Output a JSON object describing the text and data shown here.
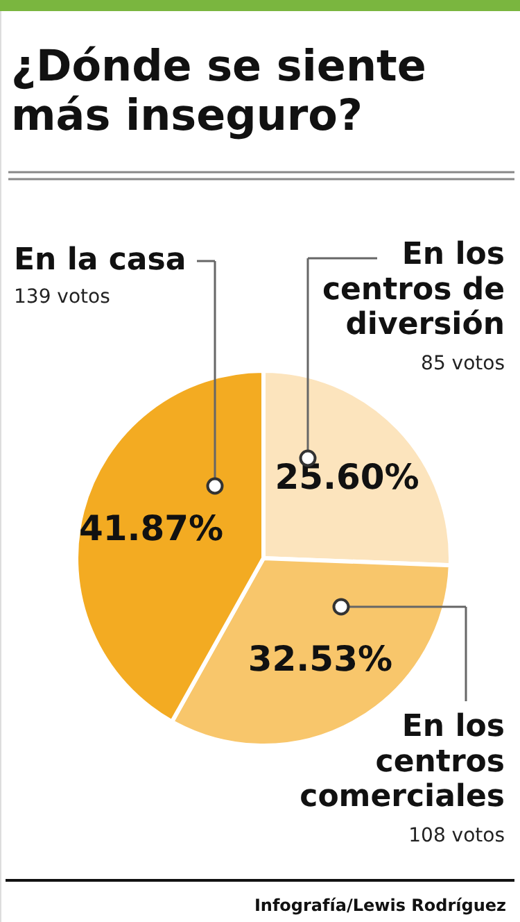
{
  "chart_data": {
    "type": "pie",
    "title": "¿Dónde se siente más inseguro?",
    "categories": [
      "En los centros de diversión",
      "En los centros comerciales",
      "En la casa"
    ],
    "values": [
      25.6,
      32.53,
      41.87
    ],
    "colors": [
      "#fce4bd",
      "#f8c66b",
      "#f3ab22"
    ],
    "value_labels": [
      "25.60%",
      "32.53%",
      "41.87%"
    ],
    "annotations": [
      "85 votos",
      "108 votos",
      "139 votos",
      "Infografía/Lewis Rodríguez"
    ]
  }
}
